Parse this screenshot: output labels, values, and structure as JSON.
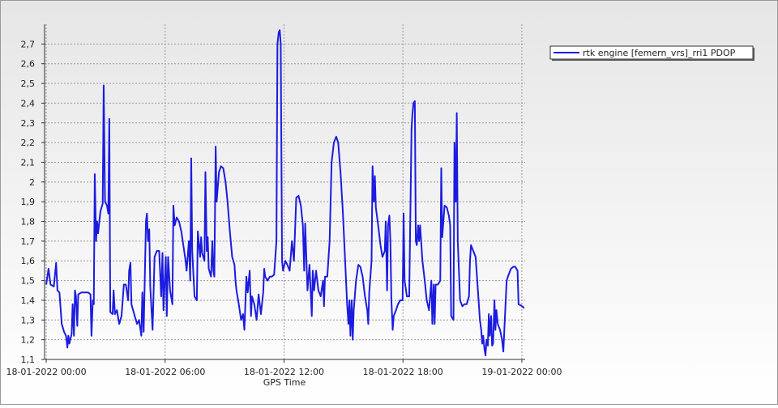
{
  "chart_data": {
    "type": "line",
    "x_label": "GPS Time",
    "legend": "right",
    "grid": true,
    "xlim": [
      "2022-01-17T23:55",
      "2022-01-19T00:10"
    ],
    "xticks": [
      {
        "value": "2022-01-18T00:00",
        "label": "18-01-2022 00:00"
      },
      {
        "value": "2022-01-18T06:00",
        "label": "18-01-2022 06:00"
      },
      {
        "value": "2022-01-18T12:00",
        "label": "18-01-2022 12:00"
      },
      {
        "value": "2022-01-18T18:00",
        "label": "18-01-2022 18:00"
      },
      {
        "value": "2022-01-19T00:00",
        "label": "19-01-2022 00:00"
      }
    ],
    "ylim": [
      1.1,
      2.8
    ],
    "yticks": [
      {
        "value": 1.1,
        "label": "1,1"
      },
      {
        "value": 1.2,
        "label": "1,2"
      },
      {
        "value": 1.3,
        "label": "1,3"
      },
      {
        "value": 1.4,
        "label": "1,4"
      },
      {
        "value": 1.5,
        "label": "1,5"
      },
      {
        "value": 1.6,
        "label": "1,6"
      },
      {
        "value": 1.7,
        "label": "1,7"
      },
      {
        "value": 1.8,
        "label": "1,8"
      },
      {
        "value": 1.9,
        "label": "1,9"
      },
      2,
      {
        "value": 2.1,
        "label": "2,1"
      },
      {
        "value": 2.2,
        "label": "2,2"
      },
      {
        "value": 2.3,
        "label": "2,3"
      },
      {
        "value": 2.4,
        "label": "2,4"
      },
      {
        "value": 2.5,
        "label": "2,5"
      },
      {
        "value": 2.6,
        "label": "2,6"
      },
      {
        "value": 2.7,
        "label": "2,7"
      }
    ],
    "x": [
      "2022-01-18T00:00",
      "2022-01-18T00:07",
      "2022-01-18T00:13",
      "2022-01-18T00:23",
      "2022-01-18T00:30",
      "2022-01-18T00:34",
      "2022-01-18T00:40",
      "2022-01-18T00:47",
      "2022-01-18T00:54",
      "2022-01-18T01:00",
      "2022-01-18T01:04",
      "2022-01-18T01:07",
      "2022-01-18T01:10",
      "2022-01-18T01:17",
      "2022-01-18T01:20",
      "2022-01-18T01:24",
      "2022-01-18T01:27",
      "2022-01-18T01:30",
      "2022-01-18T01:34",
      "2022-01-18T01:37",
      "2022-01-18T01:47",
      "2022-01-18T02:07",
      "2022-01-18T02:14",
      "2022-01-18T02:17",
      "2022-01-18T02:21",
      "2022-01-18T02:24",
      "2022-01-18T02:27",
      "2022-01-18T02:31",
      "2022-01-18T02:34",
      "2022-01-18T02:37",
      "2022-01-18T02:44",
      "2022-01-18T02:51",
      "2022-01-18T02:54",
      "2022-01-18T02:58",
      "2022-01-18T03:04",
      "2022-01-18T03:08",
      "2022-01-18T03:11",
      "2022-01-18T03:14",
      "2022-01-18T03:21",
      "2022-01-18T03:24",
      "2022-01-18T03:28",
      "2022-01-18T03:34",
      "2022-01-18T03:41",
      "2022-01-18T03:48",
      "2022-01-18T03:55",
      "2022-01-18T04:01",
      "2022-01-18T04:08",
      "2022-01-18T04:11",
      "2022-01-18T04:15",
      "2022-01-18T04:18",
      "2022-01-18T04:28",
      "2022-01-18T04:35",
      "2022-01-18T04:41",
      "2022-01-18T04:48",
      "2022-01-18T04:51",
      "2022-01-18T04:55",
      "2022-01-18T05:02",
      "2022-01-18T05:05",
      "2022-01-18T05:08",
      "2022-01-18T05:12",
      "2022-01-18T05:15",
      "2022-01-18T05:22",
      "2022-01-18T05:28",
      "2022-01-18T05:35",
      "2022-01-18T05:42",
      "2022-01-18T05:48",
      "2022-01-18T05:52",
      "2022-01-18T05:55",
      "2022-01-18T06:02",
      "2022-01-18T06:05",
      "2022-01-18T06:09",
      "2022-01-18T06:15",
      "2022-01-18T06:22",
      "2022-01-18T06:25",
      "2022-01-18T06:29",
      "2022-01-18T06:35",
      "2022-01-18T06:42",
      "2022-01-18T06:49",
      "2022-01-18T06:55",
      "2022-01-18T07:02",
      "2022-01-18T07:05",
      "2022-01-18T07:12",
      "2022-01-18T07:16",
      "2022-01-18T07:19",
      "2022-01-18T07:22",
      "2022-01-18T07:29",
      "2022-01-18T07:36",
      "2022-01-18T07:39",
      "2022-01-18T07:46",
      "2022-01-18T07:49",
      "2022-01-18T07:52",
      "2022-01-18T07:59",
      "2022-01-18T08:02",
      "2022-01-18T08:06",
      "2022-01-18T08:09",
      "2022-01-18T08:12",
      "2022-01-18T08:19",
      "2022-01-18T08:23",
      "2022-01-18T08:26",
      "2022-01-18T08:29",
      "2022-01-18T08:33",
      "2022-01-18T08:36",
      "2022-01-18T08:43",
      "2022-01-18T08:49",
      "2022-01-18T08:56",
      "2022-01-18T09:03",
      "2022-01-18T09:09",
      "2022-01-18T09:16",
      "2022-01-18T09:23",
      "2022-01-18T09:30",
      "2022-01-18T09:33",
      "2022-01-18T09:36",
      "2022-01-18T09:43",
      "2022-01-18T09:50",
      "2022-01-18T09:56",
      "2022-01-18T10:00",
      "2022-01-18T10:06",
      "2022-01-18T10:10",
      "2022-01-18T10:16",
      "2022-01-18T10:20",
      "2022-01-18T10:23",
      "2022-01-18T10:30",
      "2022-01-18T10:37",
      "2022-01-18T10:43",
      "2022-01-18T10:50",
      "2022-01-18T10:57",
      "2022-01-18T11:00",
      "2022-01-18T11:03",
      "2022-01-18T11:10",
      "2022-01-18T11:17",
      "2022-01-18T11:23",
      "2022-01-18T11:30",
      "2022-01-18T11:37",
      "2022-01-18T11:40",
      "2022-01-18T11:44",
      "2022-01-18T11:47",
      "2022-01-18T11:50",
      "2022-01-18T11:54",
      "2022-01-18T11:57",
      "2022-01-18T12:04",
      "2022-01-18T12:10",
      "2022-01-18T12:17",
      "2022-01-18T12:24",
      "2022-01-18T12:30",
      "2022-01-18T12:37",
      "2022-01-18T12:44",
      "2022-01-18T12:51",
      "2022-01-18T12:57",
      "2022-01-18T13:01",
      "2022-01-18T13:04",
      "2022-01-18T13:11",
      "2022-01-18T13:17",
      "2022-01-18T13:24",
      "2022-01-18T13:27",
      "2022-01-18T13:31",
      "2022-01-18T13:37",
      "2022-01-18T13:44",
      "2022-01-18T13:51",
      "2022-01-18T13:58",
      "2022-01-18T14:01",
      "2022-01-18T14:04",
      "2022-01-18T14:11",
      "2022-01-18T14:18",
      "2022-01-18T14:24",
      "2022-01-18T14:31",
      "2022-01-18T14:38",
      "2022-01-18T14:44",
      "2022-01-18T14:51",
      "2022-01-18T14:58",
      "2022-01-18T15:05",
      "2022-01-18T15:11",
      "2022-01-18T15:15",
      "2022-01-18T15:18",
      "2022-01-18T15:21",
      "2022-01-18T15:25",
      "2022-01-18T15:28",
      "2022-01-18T15:31",
      "2022-01-18T15:38",
      "2022-01-18T15:45",
      "2022-01-18T15:51",
      "2022-01-18T15:58",
      "2022-01-18T16:05",
      "2022-01-18T16:12",
      "2022-01-18T16:15",
      "2022-01-18T16:18",
      "2022-01-18T16:25",
      "2022-01-18T16:28",
      "2022-01-18T16:32",
      "2022-01-18T16:35",
      "2022-01-18T16:38",
      "2022-01-18T16:45",
      "2022-01-18T16:52",
      "2022-01-18T16:58",
      "2022-01-18T17:05",
      "2022-01-18T17:08",
      "2022-01-18T17:12",
      "2022-01-18T17:15",
      "2022-01-18T17:19",
      "2022-01-18T17:22",
      "2022-01-18T17:25",
      "2022-01-18T17:29",
      "2022-01-18T17:32",
      "2022-01-18T17:39",
      "2022-01-18T17:45",
      "2022-01-18T17:52",
      "2022-01-18T17:59",
      "2022-01-18T18:02",
      "2022-01-18T18:05",
      "2022-01-18T18:12",
      "2022-01-18T18:19",
      "2022-01-18T18:26",
      "2022-01-18T18:29",
      "2022-01-18T18:32",
      "2022-01-18T18:36",
      "2022-01-18T18:39",
      "2022-01-18T18:42",
      "2022-01-18T18:46",
      "2022-01-18T18:49",
      "2022-01-18T18:52",
      "2022-01-18T18:59",
      "2022-01-18T19:06",
      "2022-01-18T19:12",
      "2022-01-18T19:19",
      "2022-01-18T19:26",
      "2022-01-18T19:29",
      "2022-01-18T19:33",
      "2022-01-18T19:36",
      "2022-01-18T19:39",
      "2022-01-18T19:46",
      "2022-01-18T19:53",
      "2022-01-18T19:56",
      "2022-01-18T19:59",
      "2022-01-18T20:06",
      "2022-01-18T20:13",
      "2022-01-18T20:19",
      "2022-01-18T20:23",
      "2022-01-18T20:26",
      "2022-01-18T20:33",
      "2022-01-18T20:36",
      "2022-01-18T20:40",
      "2022-01-18T20:43",
      "2022-01-18T20:46",
      "2022-01-18T20:53",
      "2022-01-18T21:00",
      "2022-01-18T21:06",
      "2022-01-18T21:13",
      "2022-01-18T21:20",
      "2022-01-18T21:23",
      "2022-01-18T21:26",
      "2022-01-18T21:33",
      "2022-01-18T21:40",
      "2022-01-18T21:47",
      "2022-01-18T21:53",
      "2022-01-18T21:57",
      "2022-01-18T22:00",
      "2022-01-18T22:03",
      "2022-01-18T22:07",
      "2022-01-18T22:10",
      "2022-01-18T22:13",
      "2022-01-18T22:17",
      "2022-01-18T22:20",
      "2022-01-18T22:23",
      "2022-01-18T22:27",
      "2022-01-18T22:30",
      "2022-01-18T22:33",
      "2022-01-18T22:37",
      "2022-01-18T22:40",
      "2022-01-18T22:43",
      "2022-01-18T22:47",
      "2022-01-18T22:54",
      "2022-01-18T23:00",
      "2022-01-18T23:04",
      "2022-01-18T23:07",
      "2022-01-18T23:14",
      "2022-01-18T23:20",
      "2022-01-18T23:27",
      "2022-01-18T23:34",
      "2022-01-18T23:40",
      "2022-01-18T23:47",
      "2022-01-18T23:50",
      "2022-01-19T00:01",
      "2022-01-19T00:07"
    ],
    "series": [
      {
        "name": "rtk engine [femern_vrs]_rri1 PDOP",
        "color": "#1c1ce0",
        "values": [
          1.48,
          1.56,
          1.48,
          1.47,
          1.59,
          1.45,
          1.44,
          1.28,
          1.24,
          1.22,
          1.16,
          1.22,
          1.18,
          1.23,
          1.38,
          1.22,
          1.45,
          1.42,
          1.27,
          1.43,
          1.44,
          1.44,
          1.43,
          1.22,
          1.4,
          1.38,
          2.04,
          1.7,
          1.8,
          1.74,
          1.85,
          1.89,
          2.49,
          1.9,
          1.88,
          1.84,
          2.32,
          1.34,
          1.33,
          1.45,
          1.33,
          1.35,
          1.28,
          1.32,
          1.48,
          1.48,
          1.4,
          1.55,
          1.59,
          1.38,
          1.32,
          1.28,
          1.3,
          1.22,
          1.44,
          1.24,
          1.8,
          1.84,
          1.7,
          1.76,
          1.47,
          1.25,
          1.62,
          1.65,
          1.65,
          1.42,
          1.64,
          1.35,
          1.62,
          1.32,
          1.62,
          1.45,
          1.38,
          1.88,
          1.78,
          1.82,
          1.8,
          1.75,
          1.68,
          1.6,
          1.55,
          1.7,
          1.5,
          2.12,
          1.65,
          1.42,
          1.4,
          1.75,
          1.62,
          1.72,
          1.64,
          1.6,
          2.05,
          1.65,
          1.72,
          1.56,
          1.52,
          1.7,
          1.55,
          1.52,
          2.18,
          1.9,
          2.05,
          2.08,
          2.07,
          2.0,
          1.9,
          1.75,
          1.62,
          1.58,
          1.5,
          1.45,
          1.38,
          1.3,
          1.33,
          1.25,
          1.52,
          1.44,
          1.55,
          1.32,
          1.42,
          1.38,
          1.3,
          1.43,
          1.33,
          1.44,
          1.56,
          1.52,
          1.5,
          1.52,
          1.52,
          1.53,
          1.7,
          2.7,
          2.76,
          2.77,
          2.7,
          1.6,
          1.55,
          1.6,
          1.58,
          1.55,
          1.7,
          1.6,
          1.92,
          1.93,
          1.88,
          1.78,
          1.55,
          1.79,
          1.45,
          1.58,
          1.32,
          1.55,
          1.45,
          1.55,
          1.45,
          1.42,
          1.5,
          1.37,
          1.52,
          1.52,
          1.7,
          2.1,
          2.2,
          2.23,
          2.2,
          2.05,
          1.85,
          1.6,
          1.38,
          1.28,
          1.4,
          1.22,
          1.4,
          1.2,
          1.35,
          1.5,
          1.58,
          1.57,
          1.52,
          1.42,
          1.35,
          1.28,
          1.44,
          1.6,
          2.08,
          1.9,
          2.03,
          1.87,
          1.78,
          1.68,
          1.62,
          1.65,
          1.8,
          1.45,
          1.78,
          1.83,
          1.7,
          1.4,
          1.25,
          1.32,
          1.35,
          1.38,
          1.4,
          1.4,
          1.84,
          1.5,
          1.42,
          1.42,
          2.27,
          2.35,
          2.4,
          2.41,
          1.7,
          1.68,
          1.78,
          1.7,
          1.78,
          1.6,
          1.5,
          1.4,
          1.35,
          1.5,
          1.28,
          1.48,
          1.28,
          1.48,
          1.48,
          1.5,
          2.07,
          1.72,
          1.88,
          1.87,
          1.83,
          1.78,
          1.32,
          1.3,
          2.2,
          1.9,
          2.35,
          1.7,
          1.4,
          1.37,
          1.38,
          1.38,
          1.42,
          1.6,
          1.68,
          1.65,
          1.62,
          1.45,
          1.3,
          1.25,
          1.18,
          1.22,
          1.15,
          1.12,
          1.2,
          1.17,
          1.33,
          1.22,
          1.32,
          1.17,
          1.18,
          1.4,
          1.25,
          1.35,
          1.28,
          1.25,
          1.2,
          1.14,
          1.25,
          1.5,
          1.53,
          1.56,
          1.57,
          1.57,
          1.55,
          1.38,
          1.37,
          1.36
        ]
      }
    ]
  }
}
